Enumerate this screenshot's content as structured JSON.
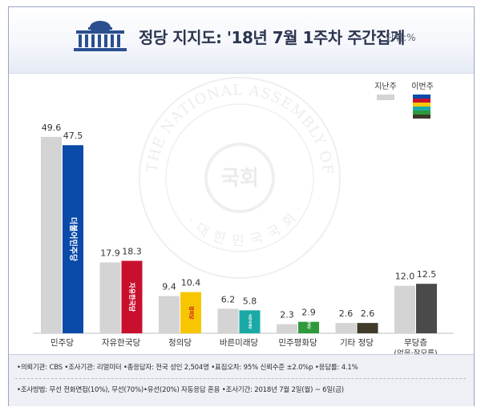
{
  "header": {
    "title": "정당 지지도: '18년 7월 1주차 주간집계",
    "unit": "단위:%"
  },
  "legend": {
    "last_week": "지난주",
    "this_week": "이번주"
  },
  "colors": {
    "last_week_bar": "#d4d4d4",
    "stripe_colors": [
      "#0a4aa8",
      "#c8102e",
      "#f7c600",
      "#1aa9a5",
      "#2e9a3a",
      "#3a3a2a"
    ]
  },
  "chart_data": {
    "type": "bar",
    "categories": [
      "민주당",
      "자유한국당",
      "정의당",
      "바른미래당",
      "민주평화당",
      "기타 정당",
      "무당층"
    ],
    "category_sublabels": [
      "",
      "",
      "",
      "",
      "",
      "",
      "(없음·잘모름)"
    ],
    "series": [
      {
        "name": "지난주",
        "values": [
          49.6,
          17.9,
          9.4,
          6.2,
          2.3,
          2.6,
          12.0
        ]
      },
      {
        "name": "이번주",
        "values": [
          47.5,
          18.3,
          10.4,
          5.8,
          2.9,
          2.6,
          12.5
        ]
      }
    ],
    "value_labels": {
      "last": [
        "49.6",
        "17.9",
        "9.4",
        "6.2",
        "2.3",
        "2.6",
        "12.0"
      ],
      "this": [
        "47.5",
        "18.3",
        "10.4",
        "5.8",
        "2.9",
        "2.6",
        "12.5"
      ]
    },
    "this_week_colors": [
      "#0a4aa8",
      "#c8102e",
      "#f7c600",
      "#1aa9a5",
      "#2e9a3a",
      "#3f3a2a",
      "#4a4a4a"
    ],
    "bar_marks": [
      "더불어민주당",
      "자유한국당",
      "정의당",
      "바른미래당",
      "민주평화당",
      "",
      ""
    ],
    "ylim": [
      0,
      52
    ],
    "legend_position": "top-right",
    "grid": false
  },
  "watermark": {
    "ring_text": "THE NATIONAL ASSEMBLY OF THE REPUBLIC OF KOREA",
    "bottom_text": "· 대 한 민 국 국 회 ·",
    "center_text": "국회"
  },
  "footer": {
    "line1": "•의뢰기관: CBS •조사기관: 리얼미터 •총응답자: 전국 성인 2,504명 •표집오차: 95% 신뢰수준 ±2.0%p •응답률: 4.1%",
    "line2": "•조사방법: 무선 전화면접(10%), 무선(70%)•유선(20%) 자동응답 혼용 •조사기간: 2018년 7월 2일(월) ~ 6일(금)"
  }
}
